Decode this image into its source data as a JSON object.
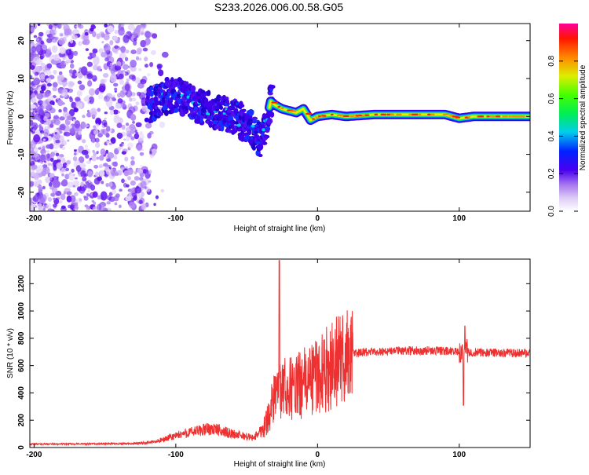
{
  "title": "S233.2026.006.00.58.G05",
  "chart_data": [
    {
      "type": "heatmap",
      "xlabel": "Height of straight line (km)",
      "ylabel": "Frequency (Hz)",
      "xlim": [
        -203,
        150
      ],
      "ylim": [
        -25,
        24.5
      ],
      "xticks": [
        -200,
        -100,
        0,
        100
      ],
      "yticks": [
        -20,
        -10,
        0,
        10,
        20
      ],
      "trace": {
        "x": [
          -118,
          -110,
          -100,
          -90,
          -80,
          -70,
          -60,
          -50,
          -45,
          -40,
          -36,
          -33,
          -30,
          -25,
          -20,
          -15,
          -10,
          -5,
          0,
          10,
          20,
          40,
          60,
          80,
          90,
          100,
          110,
          120,
          130,
          150
        ],
        "y": [
          3,
          5,
          6,
          4,
          2,
          1,
          0,
          -2,
          -4,
          -6,
          -1,
          4,
          3,
          2,
          1.5,
          1,
          2,
          -1,
          0,
          0.5,
          0,
          0.5,
          0.5,
          0.5,
          0.5,
          -0.5,
          0,
          0,
          0,
          0
        ]
      },
      "colorbar": {
        "label": "Normalized spectral amplitude",
        "ticks": [
          "0.0",
          "0.2",
          "0.4",
          "0.6",
          "0.8"
        ],
        "range": [
          0,
          1
        ]
      }
    },
    {
      "type": "line",
      "xlabel": "Height of straight line (km)",
      "ylabel": "SNR (10 * v/v)",
      "xlim": [
        -203,
        150
      ],
      "ylim": [
        0,
        1380
      ],
      "xticks": [
        -200,
        -100,
        0,
        100
      ],
      "yticks": [
        0,
        200,
        400,
        600,
        800,
        1000,
        1200
      ],
      "color": "#ee3030",
      "envelope": {
        "x": [
          -203,
          -130,
          -115,
          -95,
          -75,
          -60,
          -45,
          -37,
          -32,
          -25,
          -15,
          -5,
          5,
          15,
          25,
          40,
          60,
          80,
          100,
          120,
          150
        ],
        "y": [
          25,
          28,
          40,
          100,
          140,
          100,
          70,
          160,
          320,
          420,
          440,
          500,
          560,
          640,
          690,
          700,
          710,
          710,
          700,
          695,
          690
        ]
      },
      "spikes": [
        {
          "x": -27,
          "y": 1370
        },
        {
          "x": -30,
          "y": 520
        },
        {
          "x": 104,
          "y": 890
        },
        {
          "x": 103,
          "y": 310
        }
      ]
    }
  ]
}
